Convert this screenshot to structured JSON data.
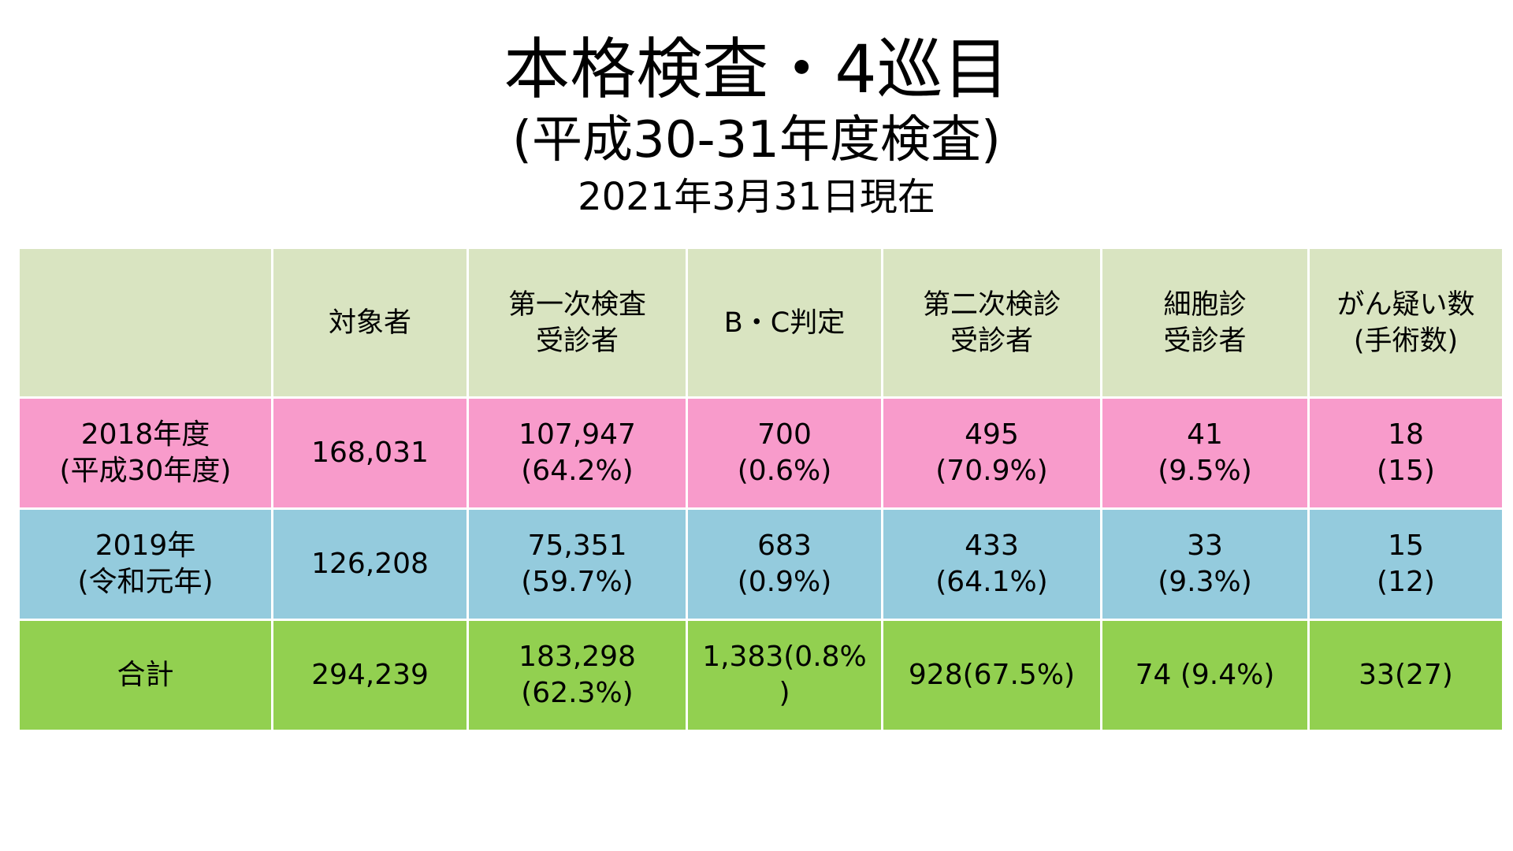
{
  "title": {
    "main": "本格検査・4巡目",
    "sub": "(平成30-31年度検査)",
    "date": "2021年3月31日現在"
  },
  "table": {
    "headers": [
      [
        ""
      ],
      [
        "対象者"
      ],
      [
        "第一次検査",
        "受診者"
      ],
      [
        "B・C判定"
      ],
      [
        "第二次検診",
        "受診者"
      ],
      [
        "細胞診",
        "受診者"
      ],
      [
        "がん疑い数",
        "(手術数)"
      ]
    ],
    "rows": [
      {
        "label": [
          "2018年度",
          "(平成30年度)"
        ],
        "cells": [
          [
            "168,031"
          ],
          [
            "107,947",
            "(64.2%)"
          ],
          [
            "700",
            "(0.6%)"
          ],
          [
            "495",
            "(70.9%)"
          ],
          [
            "41",
            "(9.5%)"
          ],
          [
            "18",
            "(15)"
          ]
        ]
      },
      {
        "label": [
          "2019年",
          "(令和元年)"
        ],
        "cells": [
          [
            "126,208"
          ],
          [
            "75,351",
            "(59.7%)"
          ],
          [
            "683",
            "(0.9%)"
          ],
          [
            "433",
            "(64.1%)"
          ],
          [
            "33",
            "(9.3%)"
          ],
          [
            "15",
            "(12)"
          ]
        ]
      },
      {
        "label": [
          "合計"
        ],
        "cells": [
          [
            "294,239"
          ],
          [
            "183,298",
            "(62.3%)"
          ],
          [
            "1,383(0.8%",
            ")"
          ],
          [
            "928(67.5%)"
          ],
          [
            "74 (9.4%)"
          ],
          [
            "33(27)"
          ]
        ]
      }
    ]
  }
}
